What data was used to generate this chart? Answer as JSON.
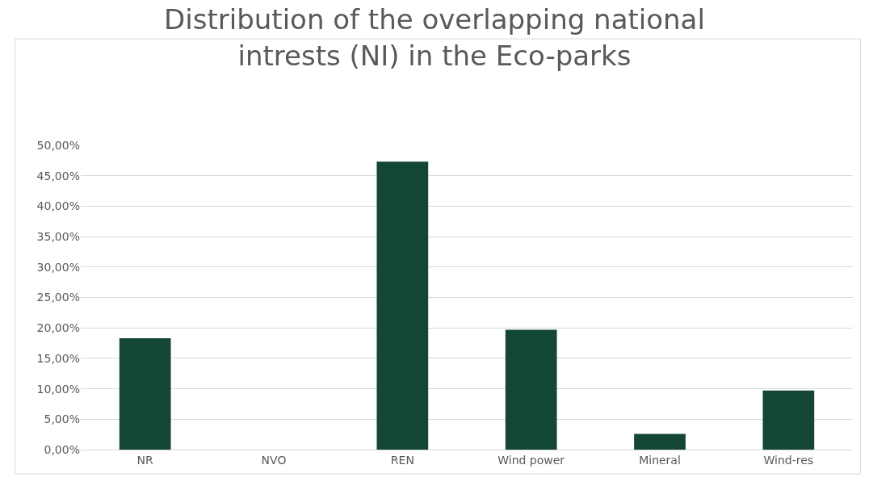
{
  "chart_data": {
    "type": "bar",
    "title": "Distribution of the overlapping national intrests (NI) in the Eco-parks",
    "categories": [
      "NR",
      "NVO",
      "REN",
      "Wind power",
      "Mineral",
      "Wind-res"
    ],
    "values": [
      18.3,
      0,
      47.3,
      19.7,
      2.6,
      9.7
    ],
    "color": "#134734",
    "ylim": [
      0,
      50
    ],
    "yticks": [
      {
        "value": 0,
        "label": "0,00%"
      },
      {
        "value": 5,
        "label": "5,00%"
      },
      {
        "value": 10,
        "label": "10,00%"
      },
      {
        "value": 15,
        "label": "15,00%"
      },
      {
        "value": 20,
        "label": "20,00%"
      },
      {
        "value": 25,
        "label": "25,00%"
      },
      {
        "value": 30,
        "label": "30,00%"
      },
      {
        "value": 35,
        "label": "35,00%"
      },
      {
        "value": 40,
        "label": "40,00%"
      },
      {
        "value": 45,
        "label": "45,00%"
      },
      {
        "value": 50,
        "label": "50,00%"
      }
    ],
    "grid": "y"
  }
}
